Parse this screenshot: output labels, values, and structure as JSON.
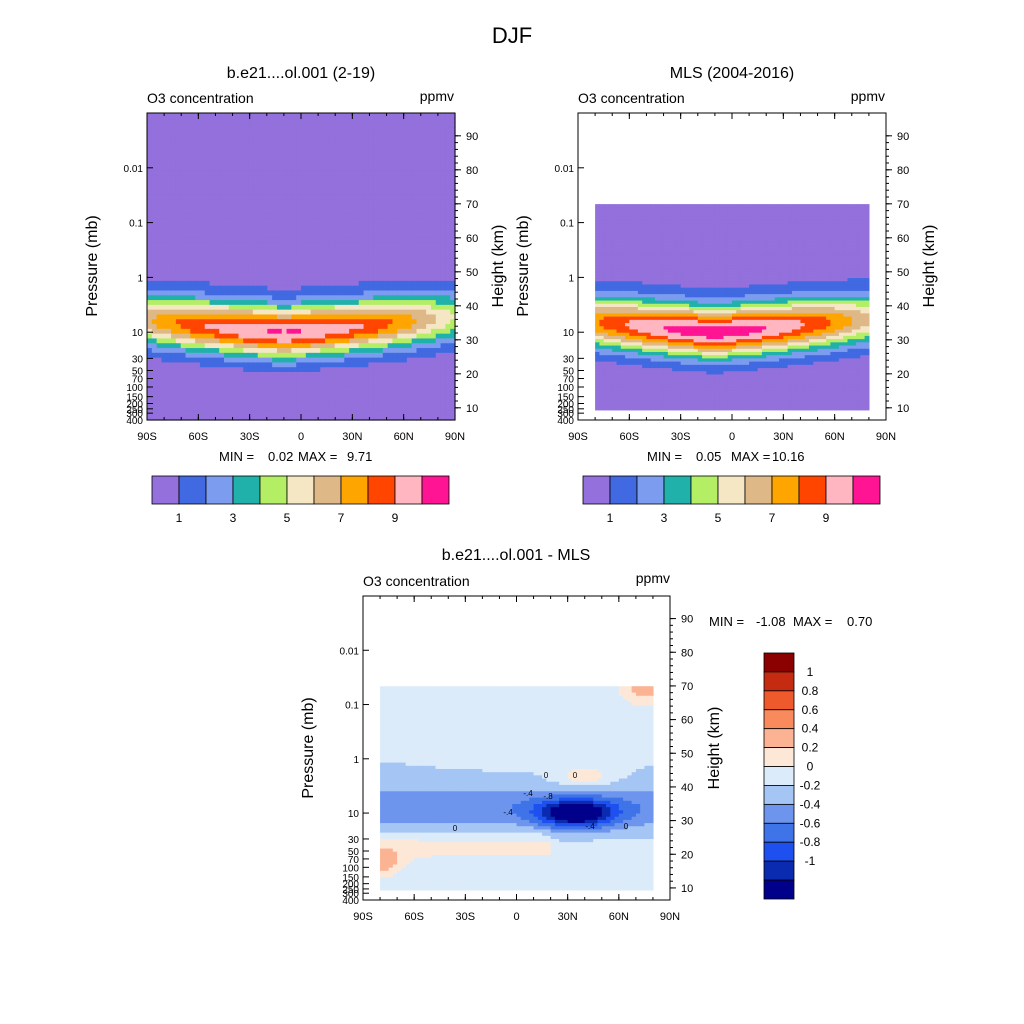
{
  "figure_title": "DJF",
  "colors": {
    "sequential": [
      "#9370DB",
      "#4169E1",
      "#7B9CEF",
      "#20B2AA",
      "#B4EE64",
      "#F5E6C4",
      "#DEB887",
      "#FFA500",
      "#FF4500",
      "#FFB6C1",
      "#FF1493"
    ],
    "diverging": [
      "#00008B",
      "#0A2BB0",
      "#1E50F0",
      "#3F73E8",
      "#6E95EE",
      "#A5C6F5",
      "#DCEBFA",
      "#FDE8D8",
      "#FBB393",
      "#F98A5C",
      "#EE5A2C",
      "#C42B10",
      "#8B0000"
    ]
  },
  "chart_data": [
    {
      "type": "heatmap",
      "id": "model",
      "title": "b.e21....ol.001 (2-19)",
      "left_label": "O3 concentration",
      "units": "ppmv",
      "xlabel": "",
      "ylabel": "Pressure (mb)",
      "ylabel_right": "Height (km)",
      "x_ticks": [
        "90S",
        "60S",
        "30S",
        "0",
        "30N",
        "60N",
        "90N"
      ],
      "x_tick_values": [
        -90,
        -60,
        -30,
        0,
        30,
        60,
        90
      ],
      "pressure_ticks": [
        "0.01",
        "0.1",
        "1",
        "10",
        "30",
        "50",
        "70",
        "100",
        "150",
        "200",
        "250",
        "300",
        "400"
      ],
      "pressure_values": [
        0.01,
        0.1,
        1,
        10,
        30,
        50,
        70,
        100,
        150,
        200,
        250,
        300,
        400
      ],
      "pressure_range_mb": [
        0.001,
        400
      ],
      "height_ticks": [
        "10",
        "20",
        "30",
        "40",
        "50",
        "60",
        "70",
        "80",
        "90"
      ],
      "height_values": [
        10,
        20,
        30,
        40,
        50,
        60,
        70,
        80,
        90
      ],
      "lat_range": [
        -90,
        90
      ],
      "data_lat_range": [
        -90,
        90
      ],
      "data_pressure_range_mb": [
        0.001,
        400
      ],
      "field_max": 9.71,
      "peak_lat": -10,
      "min_label": "MIN =",
      "min_value": "0.02",
      "max_label": "MAX =",
      "max_value": "9.71",
      "colorbar_labels": [
        "1",
        "3",
        "5",
        "7",
        "9"
      ],
      "colorbar_label_index": [
        1,
        3,
        5,
        7,
        9
      ]
    },
    {
      "type": "heatmap",
      "id": "obs",
      "title": "MLS (2004-2016)",
      "left_label": "O3 concentration",
      "units": "ppmv",
      "xlabel": "",
      "ylabel": "Pressure (mb)",
      "ylabel_right": "Height (km)",
      "x_ticks": [
        "90S",
        "60S",
        "30S",
        "0",
        "30N",
        "60N",
        "90N"
      ],
      "x_tick_values": [
        -90,
        -60,
        -30,
        0,
        30,
        60,
        90
      ],
      "pressure_ticks": [
        "0.01",
        "0.1",
        "1",
        "10",
        "30",
        "50",
        "70",
        "100",
        "150",
        "200",
        "250",
        "300",
        "400"
      ],
      "pressure_values": [
        0.01,
        0.1,
        1,
        10,
        30,
        50,
        70,
        100,
        150,
        200,
        250,
        300,
        400
      ],
      "pressure_range_mb": [
        0.001,
        400
      ],
      "height_ticks": [
        "10",
        "20",
        "30",
        "40",
        "50",
        "60",
        "70",
        "80",
        "90"
      ],
      "height_values": [
        10,
        20,
        30,
        40,
        50,
        60,
        70,
        80,
        90
      ],
      "lat_range": [
        -90,
        90
      ],
      "data_lat_range": [
        -80,
        80
      ],
      "data_pressure_range_mb": [
        0.046,
        261
      ],
      "field_max": 10.16,
      "peak_lat": -10,
      "min_label": "MIN =",
      "min_value": "0.05",
      "max_label": "MAX =",
      "max_value": "10.16",
      "colorbar_labels": [
        "1",
        "3",
        "5",
        "7",
        "9"
      ],
      "colorbar_label_index": [
        1,
        3,
        5,
        7,
        9
      ]
    },
    {
      "type": "heatmap",
      "id": "diff",
      "title": "b.e21....ol.001 - MLS",
      "left_label": "O3 concentration",
      "units": "ppmv",
      "xlabel": "",
      "ylabel": "Pressure (mb)",
      "ylabel_right": "Height (km)",
      "x_ticks": [
        "90S",
        "60S",
        "30S",
        "0",
        "30N",
        "60N",
        "90N"
      ],
      "x_tick_values": [
        -90,
        -60,
        -30,
        0,
        30,
        60,
        90
      ],
      "pressure_ticks": [
        "0.01",
        "0.1",
        "1",
        "10",
        "30",
        "50",
        "70",
        "100",
        "150",
        "200",
        "250",
        "300",
        "400"
      ],
      "pressure_values": [
        0.01,
        0.1,
        1,
        10,
        30,
        50,
        70,
        100,
        150,
        200,
        250,
        300,
        400
      ],
      "pressure_range_mb": [
        0.001,
        400
      ],
      "height_ticks": [
        "10",
        "20",
        "30",
        "40",
        "50",
        "60",
        "70",
        "80",
        "90"
      ],
      "height_values": [
        10,
        20,
        30,
        40,
        50,
        60,
        70,
        80,
        90
      ],
      "lat_range": [
        -90,
        90
      ],
      "data_lat_range": [
        -80,
        80
      ],
      "data_pressure_range_mb": [
        0.046,
        261
      ],
      "contour_labels": [
        "0",
        "0",
        "0",
        "0",
        "-.4",
        "-.4",
        "-.4",
        "-.8"
      ],
      "min_label": "MIN =",
      "min_value": "-1.08",
      "max_label": "MAX =",
      "max_value": "0.70",
      "colorbar_labels": [
        "1",
        "0.8",
        "0.6",
        "0.4",
        "0.2",
        "0",
        "-0.2",
        "-0.4",
        "-0.6",
        "-0.8",
        "-1"
      ],
      "colorbar_label_index": [
        1,
        2,
        3,
        4,
        5,
        6,
        7,
        8,
        9,
        10,
        11
      ]
    }
  ]
}
